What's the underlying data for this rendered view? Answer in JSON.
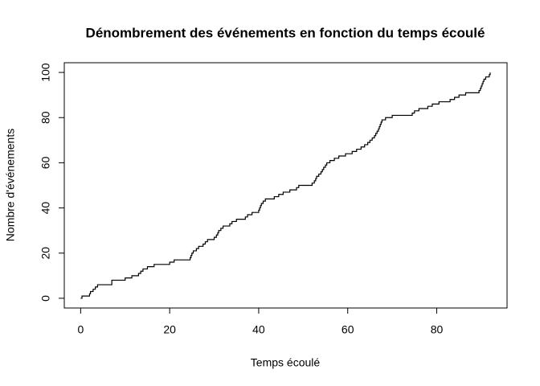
{
  "chart_data": {
    "type": "step",
    "title": "Dénombrement des événements en fonction du temps écoulé",
    "x_label": "Temps écoulé",
    "y_label": "Nombre d'événements",
    "x": [
      0,
      0.3,
      2,
      2.2,
      2.8,
      3.3,
      3.8,
      7,
      10,
      11.5,
      13,
      13.5,
      14,
      15,
      16.5,
      20,
      21,
      24.6,
      24.8,
      25,
      25.3,
      26,
      26.5,
      27.5,
      28,
      28.5,
      30,
      30.5,
      30.8,
      31,
      31.5,
      32,
      33.5,
      34,
      35,
      37,
      37.5,
      38.5,
      40,
      40.2,
      40.4,
      40.6,
      41,
      41.5,
      43.5,
      44.5,
      45.5,
      47,
      48.5,
      49,
      52,
      52.5,
      52.8,
      53,
      53.5,
      54,
      54.3,
      54.6,
      55,
      55.3,
      56,
      57,
      58,
      59.5,
      61,
      62,
      63,
      63.8,
      64.5,
      65,
      65.5,
      66,
      66.3,
      66.6,
      66.9,
      67.1,
      67.3,
      67.5,
      67.7,
      68.5,
      70,
      74.5,
      75,
      76,
      78,
      79,
      80.5,
      83,
      84,
      85,
      86.5,
      89.5,
      89.8,
      90,
      90.2,
      90.4,
      90.6,
      91,
      91.8,
      92
    ],
    "series": [
      {
        "name": "Nombre d'événements",
        "color": "#000000",
        "values": [
          0,
          1,
          2,
          3,
          4,
          5,
          6,
          8,
          9,
          10,
          11,
          12,
          13,
          14,
          15,
          16,
          17,
          18,
          19,
          20,
          21,
          22,
          23,
          24,
          25,
          26,
          27,
          28,
          29,
          30,
          31,
          32,
          33,
          34,
          35,
          36,
          37,
          38,
          39,
          40,
          41,
          42,
          43,
          44,
          45,
          46,
          47,
          48,
          49,
          50,
          51,
          52,
          53,
          54,
          55,
          56,
          57,
          58,
          59,
          60,
          61,
          62,
          63,
          64,
          65,
          66,
          67,
          68,
          69,
          70,
          71,
          72,
          73,
          74,
          75,
          76,
          77,
          78,
          79,
          80,
          81,
          82,
          83,
          84,
          85,
          86,
          87,
          88,
          89,
          90,
          91,
          92,
          93,
          94,
          95,
          96,
          97,
          98,
          99,
          100
        ]
      }
    ],
    "xlim": [
      -3.68,
      95.8
    ],
    "ylim": [
      -4.3,
      104.3
    ],
    "xticks": [
      0,
      20,
      40,
      60,
      80
    ],
    "yticks": [
      0,
      20,
      40,
      60,
      80,
      100
    ]
  }
}
